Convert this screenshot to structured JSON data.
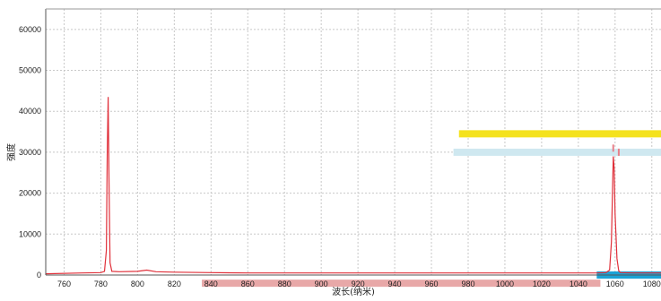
{
  "chart_data": {
    "type": "line",
    "title": "",
    "xlabel": "波长(纳米)",
    "ylabel": "强度",
    "xlim": [
      750,
      1085
    ],
    "ylim": [
      0,
      65000
    ],
    "x_ticks": [
      760,
      780,
      800,
      820,
      840,
      860,
      880,
      900,
      920,
      940,
      960,
      980,
      1000,
      1020,
      1040,
      1060,
      1080
    ],
    "y_ticks": [
      0,
      10000,
      20000,
      30000,
      40000,
      50000,
      60000
    ],
    "grid": true,
    "legend": "none",
    "series": [
      {
        "color": "#e0303a",
        "x": [
          750,
          770,
          780,
          782,
          783,
          783.5,
          784,
          784.5,
          785,
          786,
          790,
          800,
          805,
          810,
          820,
          840,
          860,
          880,
          900,
          950,
          1000,
          1050,
          1055,
          1057,
          1058,
          1059,
          1059.5,
          1060,
          1061,
          1062,
          1063,
          1070,
          1085
        ],
        "y": [
          300,
          500,
          600,
          900,
          6000,
          30000,
          43500,
          22000,
          3000,
          900,
          800,
          900,
          1200,
          800,
          700,
          600,
          500,
          500,
          500,
          500,
          500,
          500,
          600,
          1200,
          8000,
          29000,
          26000,
          15000,
          4000,
          1000,
          600,
          500,
          500
        ]
      }
    ],
    "overlay_bars": [
      {
        "color": "#f4e21e",
        "x": [
          975,
          1085
        ],
        "y": 34500
      },
      {
        "color": "#cfe8f0",
        "x": [
          972,
          1085
        ],
        "y": 30000
      },
      {
        "color": "#e8a8a8",
        "x": [
          835,
          1052
        ],
        "y": -2000
      },
      {
        "color": "#1ca3d6",
        "x": [
          1050,
          1085
        ],
        "y": 0
      }
    ],
    "overlay_markers": [
      {
        "color": "#e8808a",
        "x": 1059,
        "y": 31000
      },
      {
        "color": "#e8808a",
        "x": 1062,
        "y": 30000
      }
    ]
  }
}
